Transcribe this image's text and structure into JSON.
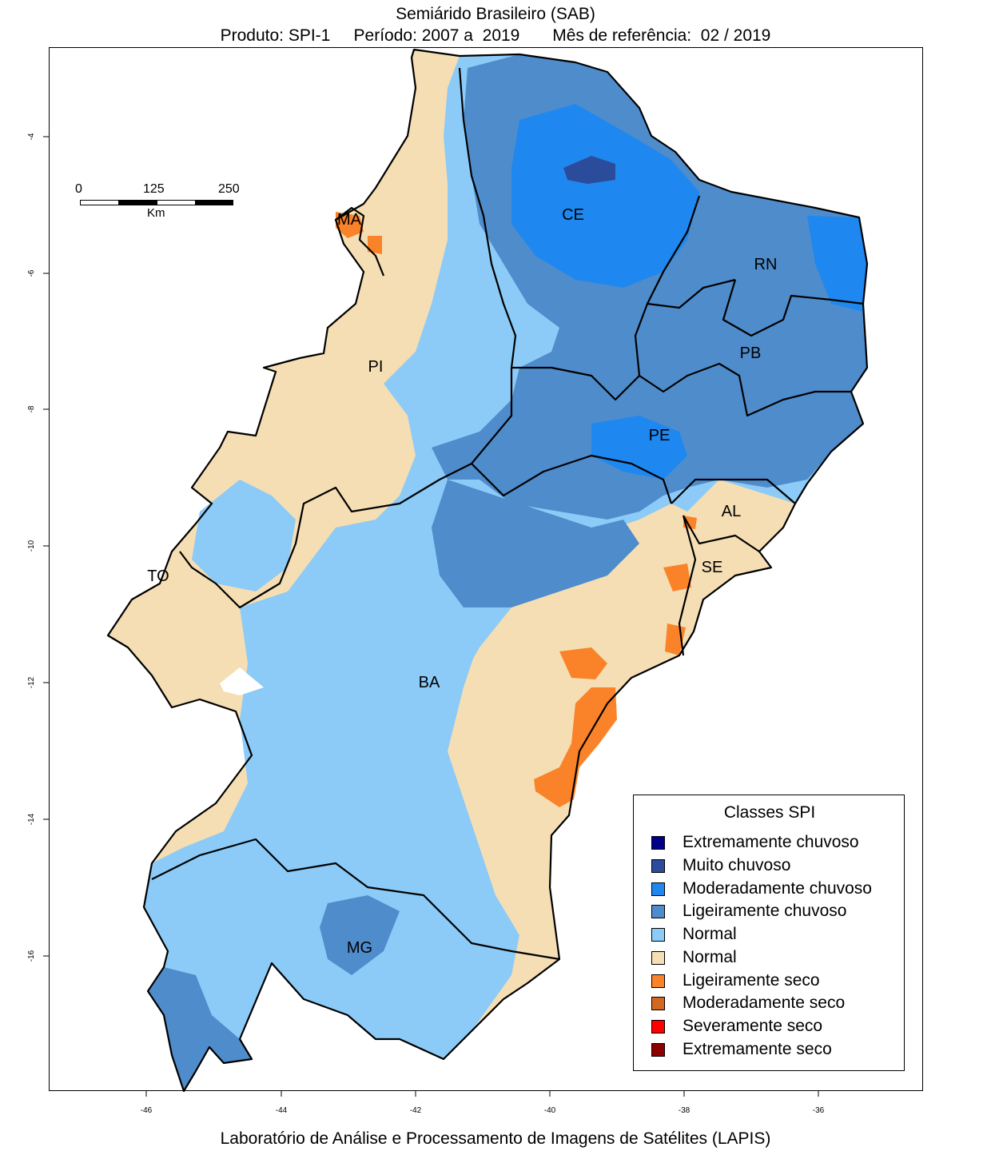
{
  "title": {
    "line1": "Semiárido Brasileiro (SAB)",
    "line2": "Produto: SPI-1     Período: 2007 a  2019       Mês de referência:  02 / 2019"
  },
  "footer": "Laboratório de Análise e Processamento de Imagens de Satélites (LAPIS)",
  "map": {
    "x_ticks": [
      "-46",
      "-44",
      "-42",
      "-40",
      "-38",
      "-36"
    ],
    "y_ticks": [
      "-4",
      "-6",
      "-8",
      "-10",
      "-12",
      "-14",
      "-16"
    ],
    "states": [
      {
        "label": "CE"
      },
      {
        "label": "RN"
      },
      {
        "label": "PB"
      },
      {
        "label": "PI"
      },
      {
        "label": "PE"
      },
      {
        "label": "AL"
      },
      {
        "label": "SE"
      },
      {
        "label": "BA"
      },
      {
        "label": "MG"
      },
      {
        "label": "MA"
      },
      {
        "label": "TO"
      }
    ],
    "scale_bar": {
      "labels": [
        "0",
        "125",
        "250"
      ],
      "unit": "Km"
    }
  },
  "legend": {
    "title": "Classes SPI",
    "items": [
      {
        "label": "Extremamente chuvoso",
        "color": "#00008b"
      },
      {
        "label": "Muito chuvoso",
        "color": "#2b4c9a"
      },
      {
        "label": "Moderadamente chuvoso",
        "color": "#1e88f0"
      },
      {
        "label": "Ligeiramente chuvoso",
        "color": "#4f8ccb"
      },
      {
        "label": "Normal",
        "color": "#8ccbf7"
      },
      {
        "label": "Normal",
        "color": "#f5deb3"
      },
      {
        "label": "Ligeiramente seco",
        "color": "#fa8228"
      },
      {
        "label": "Moderadamente seco",
        "color": "#d2691e"
      },
      {
        "label": "Severamente seco",
        "color": "#ff0000"
      },
      {
        "label": "Extremamente seco",
        "color": "#8b0000"
      }
    ]
  }
}
